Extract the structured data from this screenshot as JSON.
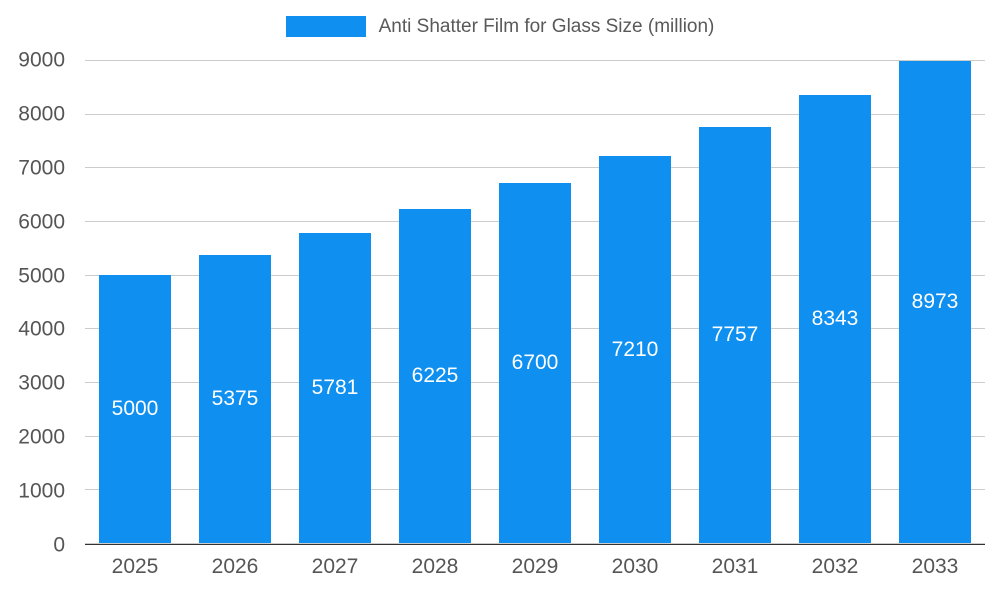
{
  "legend": {
    "label": "Anti Shatter Film for Glass Size (million)",
    "swatch_color": "#0f8ff0"
  },
  "chart_data": {
    "type": "bar",
    "title": "Anti Shatter Film for Glass Size (million)",
    "categories": [
      "2025",
      "2026",
      "2027",
      "2028",
      "2029",
      "2030",
      "2031",
      "2032",
      "2033"
    ],
    "values": [
      5000,
      5375,
      5781,
      6225,
      6700,
      7210,
      7757,
      8343,
      8973
    ],
    "series_name": "Anti Shatter Film for Glass Size (million)",
    "xlabel": "",
    "ylabel": "",
    "ylim": [
      0,
      9000
    ],
    "yticks": [
      0,
      1000,
      2000,
      3000,
      4000,
      5000,
      6000,
      7000,
      8000,
      9000
    ],
    "grid": true,
    "legend_position": "top",
    "value_labels": "inside-center",
    "bar_color": "#0f8ff0",
    "axis_text_color": "#555555",
    "gridline_color": "#cccccc"
  }
}
